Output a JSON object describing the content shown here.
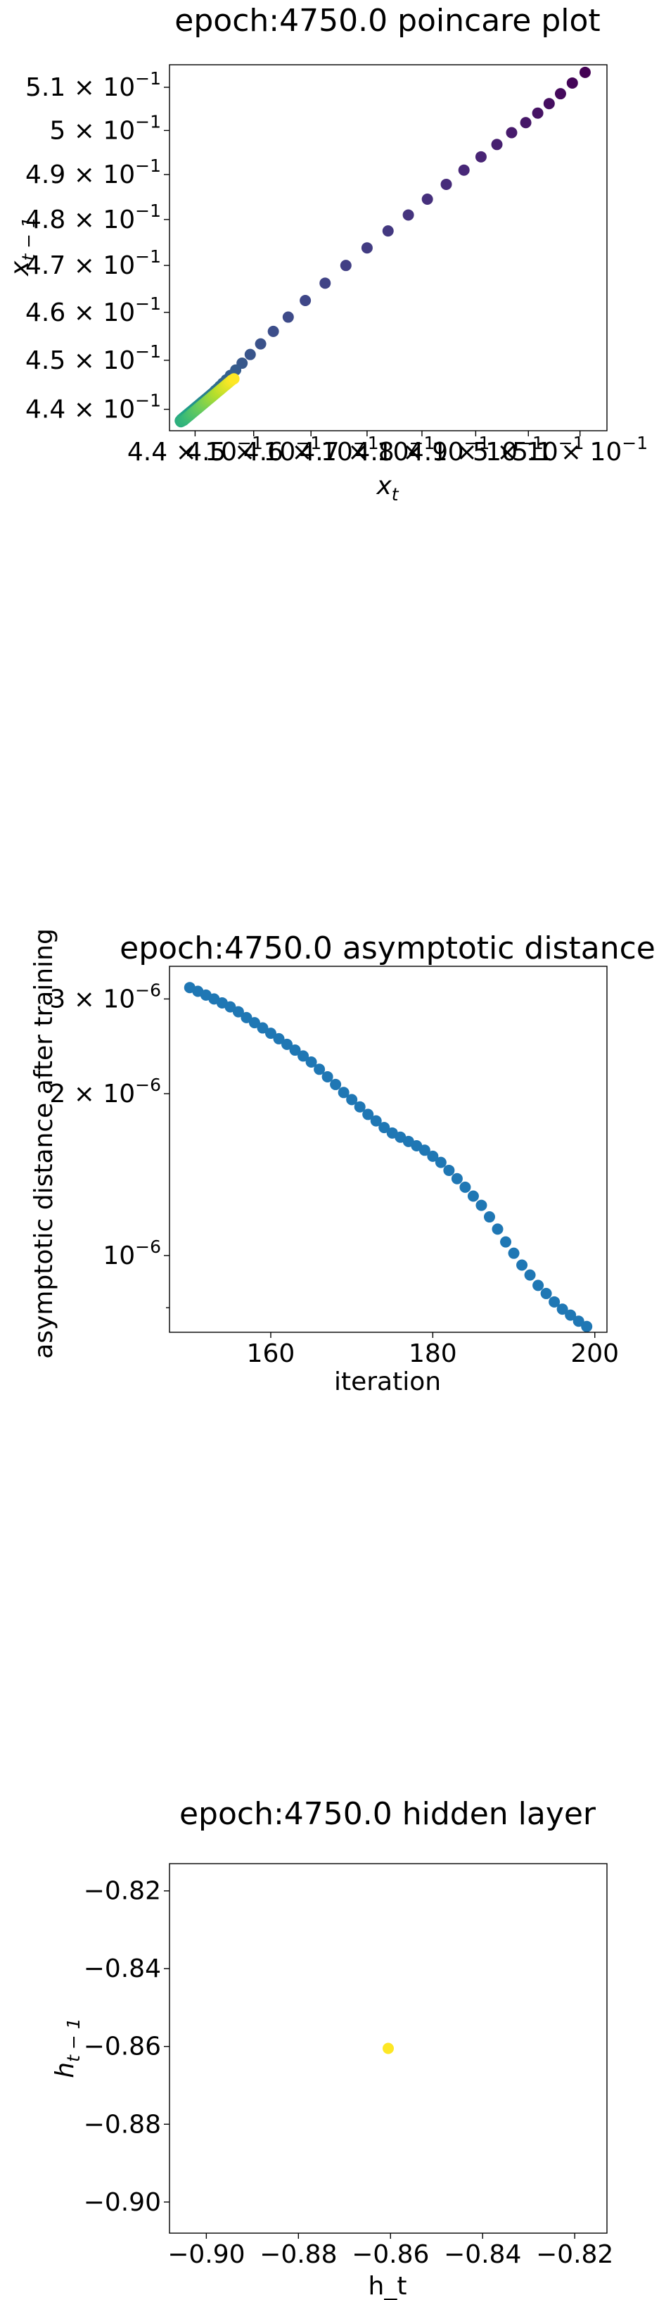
{
  "chart_data": [
    {
      "type": "scatter",
      "title": "epoch:4750.0 poincare plot",
      "xlabel_base": "x",
      "xlabel_sub": "t",
      "ylabel_base": "x",
      "ylabel_sub": "t − 1",
      "xscale": "log",
      "yscale": "log",
      "xlim": [
        0.4357,
        0.5153
      ],
      "ylim": [
        0.4357,
        0.5153
      ],
      "grid": false,
      "colormap": "viridis",
      "x_ticks": [
        {
          "value": 0.44,
          "label": "4.4 × 10"
        },
        {
          "value": 0.45,
          "label": "4.5 × 10"
        },
        {
          "value": 0.46,
          "label": "4.6 × 10"
        },
        {
          "value": 0.47,
          "label": "4.7 × 10"
        },
        {
          "value": 0.48,
          "label": "4.8 × 10"
        },
        {
          "value": 0.49,
          "label": "4.9 × 10"
        },
        {
          "value": 0.5,
          "label": "5 × 10"
        },
        {
          "value": 0.51,
          "label": "5.1 × 10"
        }
      ],
      "y_ticks": [
        {
          "value": 0.44,
          "label": "4.4 × 10"
        },
        {
          "value": 0.45,
          "label": "4.5 × 10"
        },
        {
          "value": 0.46,
          "label": "4.6 × 10"
        },
        {
          "value": 0.47,
          "label": "4.7 × 10"
        },
        {
          "value": 0.48,
          "label": "4.8 × 10"
        },
        {
          "value": 0.49,
          "label": "4.9 × 10"
        },
        {
          "value": 0.5,
          "label": "5 × 10"
        },
        {
          "value": 0.51,
          "label": "5.1 × 10"
        }
      ],
      "tick_exponent": "−1",
      "points": {
        "x": [
          0.511,
          0.5085,
          0.5062,
          0.504,
          0.5018,
          0.4995,
          0.4968,
          0.494,
          0.491,
          0.4878,
          0.4845,
          0.481,
          0.4775,
          0.4738,
          0.47,
          0.4662,
          0.4625,
          0.459,
          0.456,
          0.4534,
          0.4512,
          0.4494,
          0.448,
          0.4469,
          0.446,
          0.4453,
          0.4447,
          0.4442,
          0.4438,
          0.4434,
          0.4431,
          0.4428,
          0.4425,
          0.4422,
          0.4419,
          0.4416,
          0.4413,
          0.441,
          0.4407,
          0.4404,
          0.4401,
          0.4398,
          0.4395,
          0.4392,
          0.4389,
          0.4386,
          0.4383,
          0.438,
          0.4377,
          0.4375,
          0.4376,
          0.4378,
          0.4381,
          0.4384,
          0.4387,
          0.439,
          0.4393,
          0.4396,
          0.4399,
          0.4402,
          0.4405,
          0.4408,
          0.4411,
          0.4414,
          0.4417,
          0.442,
          0.4423,
          0.4426,
          0.4429,
          0.4432,
          0.4435,
          0.4438,
          0.4441,
          0.4444,
          0.4447,
          0.445,
          0.4453,
          0.4456,
          0.4459,
          0.4462,
          0.4466
        ],
        "y": [
          0.5135,
          0.511,
          0.5085,
          0.5062,
          0.504,
          0.5018,
          0.4995,
          0.4968,
          0.494,
          0.491,
          0.4878,
          0.4845,
          0.481,
          0.4775,
          0.4738,
          0.47,
          0.4662,
          0.4625,
          0.459,
          0.456,
          0.4534,
          0.4512,
          0.4494,
          0.448,
          0.4469,
          0.446,
          0.4453,
          0.4447,
          0.4442,
          0.4438,
          0.4434,
          0.4431,
          0.4428,
          0.4425,
          0.4422,
          0.4419,
          0.4416,
          0.4413,
          0.441,
          0.4407,
          0.4404,
          0.4401,
          0.4398,
          0.4395,
          0.4392,
          0.4389,
          0.4386,
          0.4383,
          0.438,
          0.4377,
          0.4375,
          0.4376,
          0.4378,
          0.4381,
          0.4384,
          0.4387,
          0.439,
          0.4393,
          0.4396,
          0.4399,
          0.4402,
          0.4405,
          0.4408,
          0.4411,
          0.4414,
          0.4417,
          0.442,
          0.4423,
          0.4426,
          0.4429,
          0.4432,
          0.4435,
          0.4438,
          0.4441,
          0.4444,
          0.4447,
          0.445,
          0.4453,
          0.4456,
          0.4459,
          0.4462
        ]
      }
    },
    {
      "type": "scatter",
      "title": "epoch:4750.0 asymptotic distance",
      "xlabel": "iteration",
      "ylabel": "asymptotic distance after training",
      "yscale": "log",
      "xlim": [
        147.5,
        201.5
      ],
      "ylim": [
        7.2e-07,
        3.45e-06
      ],
      "grid": false,
      "color": "#1f77b4",
      "x_ticks": [
        {
          "value": 160,
          "label": "160"
        },
        {
          "value": 180,
          "label": "180"
        },
        {
          "value": 200,
          "label": "200"
        }
      ],
      "y_ticks": [
        {
          "value": 3e-06,
          "label": "3 × 10",
          "exp": "−6"
        },
        {
          "value": 2e-06,
          "label": "2 × 10",
          "exp": "−6"
        },
        {
          "value": 1e-06,
          "label": "10",
          "exp": "−6"
        }
      ],
      "y_minor_ticks": [
        8e-07
      ],
      "points": {
        "x": [
          150,
          151,
          152,
          153,
          154,
          155,
          156,
          157,
          158,
          159,
          160,
          161,
          162,
          163,
          164,
          165,
          166,
          167,
          168,
          169,
          170,
          171,
          172,
          173,
          174,
          175,
          176,
          177,
          178,
          179,
          180,
          181,
          182,
          183,
          184,
          185,
          186,
          187,
          188,
          189,
          190,
          191,
          192,
          193,
          194,
          195,
          196,
          197,
          198,
          199
        ],
        "y": [
          3.15e-06,
          3.1e-06,
          3.05e-06,
          3e-06,
          2.95e-06,
          2.9e-06,
          2.84e-06,
          2.77e-06,
          2.71e-06,
          2.65e-06,
          2.59e-06,
          2.53e-06,
          2.47e-06,
          2.41e-06,
          2.35e-06,
          2.29e-06,
          2.22e-06,
          2.15e-06,
          2.08e-06,
          2.01e-06,
          1.95e-06,
          1.89e-06,
          1.83e-06,
          1.78e-06,
          1.73e-06,
          1.69e-06,
          1.66e-06,
          1.63e-06,
          1.6e-06,
          1.57e-06,
          1.53e-06,
          1.49e-06,
          1.44e-06,
          1.39e-06,
          1.34e-06,
          1.29e-06,
          1.24e-06,
          1.18e-06,
          1.12e-06,
          1.06e-06,
          1.01e-06,
          9.6e-07,
          9.2e-07,
          8.8e-07,
          8.5e-07,
          8.2e-07,
          7.95e-07,
          7.75e-07,
          7.55e-07,
          7.38e-07
        ]
      }
    },
    {
      "type": "scatter",
      "title": "epoch:4750.0 hidden layer",
      "xlabel": "h_t",
      "ylabel_base": "h",
      "ylabel_sub": "t − 1",
      "xlim": [
        -0.908,
        -0.813
      ],
      "ylim": [
        -0.908,
        -0.813
      ],
      "grid": false,
      "color": "#fde725",
      "x_ticks": [
        {
          "value": -0.9,
          "label": "−0.90"
        },
        {
          "value": -0.88,
          "label": "−0.88"
        },
        {
          "value": -0.86,
          "label": "−0.86"
        },
        {
          "value": -0.84,
          "label": "−0.84"
        },
        {
          "value": -0.82,
          "label": "−0.82"
        }
      ],
      "y_ticks": [
        {
          "value": -0.9,
          "label": "−0.90"
        },
        {
          "value": -0.88,
          "label": "−0.88"
        },
        {
          "value": -0.86,
          "label": "−0.86"
        },
        {
          "value": -0.84,
          "label": "−0.84"
        },
        {
          "value": -0.82,
          "label": "−0.82"
        }
      ],
      "points": {
        "x": [
          -0.8605
        ],
        "y": [
          -0.8605
        ]
      }
    }
  ]
}
